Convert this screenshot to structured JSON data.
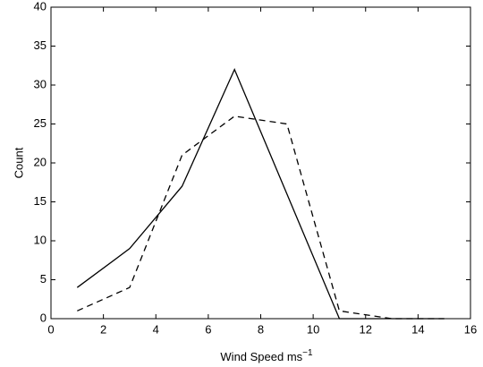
{
  "chart_data": {
    "type": "line",
    "xlabel": "Wind Speed ms",
    "xlabel_superscript": "−1",
    "ylabel": "Count",
    "x": [
      1,
      3,
      5,
      7,
      9,
      11,
      13,
      15
    ],
    "series": [
      {
        "color": "#000000",
        "style": "solid",
        "values": [
          4,
          9,
          17,
          32,
          16,
          0,
          0,
          0
        ]
      },
      {
        "color": "#000000",
        "style": "dashed",
        "values": [
          1,
          4,
          21,
          26,
          25,
          1,
          0,
          0
        ]
      }
    ],
    "xlim": [
      0,
      16
    ],
    "xticks": [
      0,
      2,
      4,
      6,
      8,
      10,
      12,
      14,
      16
    ],
    "ylim": [
      0,
      40
    ],
    "yticks": [
      0,
      5,
      10,
      15,
      20,
      25,
      30,
      35,
      40
    ],
    "grid": false
  }
}
